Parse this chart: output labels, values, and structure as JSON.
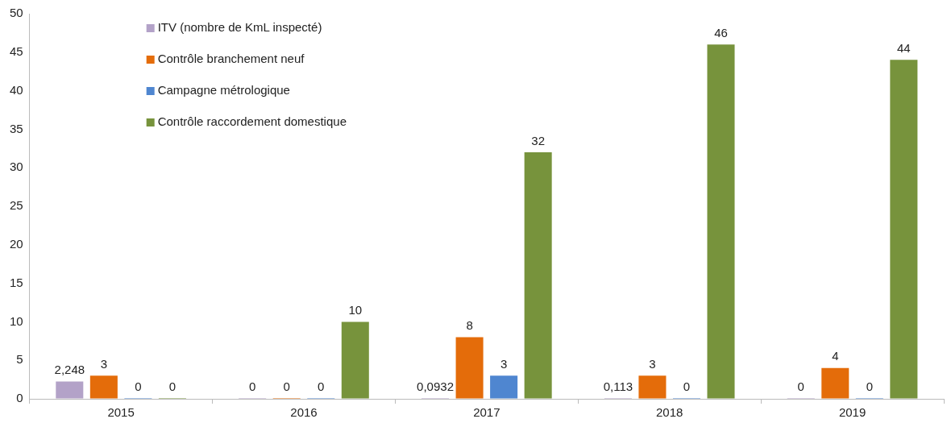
{
  "chart_data": {
    "type": "bar",
    "categories": [
      "2015",
      "2016",
      "2017",
      "2018",
      "2019"
    ],
    "series": [
      {
        "name": "ITV (nombre de KmL inspecté)",
        "color": "#b3a2c8",
        "values": [
          2.248,
          0,
          0.0932,
          0.113,
          0
        ],
        "value_labels": [
          "2,248",
          "0",
          "0,0932",
          "0,113",
          "0"
        ]
      },
      {
        "name": "Contrôle branchement neuf",
        "color": "#e46c0a",
        "values": [
          3,
          0,
          8,
          3,
          4
        ],
        "value_labels": [
          "3",
          "0",
          "8",
          "3",
          "4"
        ]
      },
      {
        "name": "Campagne métrologique",
        "color": "#4f86d0",
        "values": [
          0,
          0,
          3,
          0,
          0
        ],
        "value_labels": [
          "0",
          "0",
          "3",
          "0",
          "0"
        ]
      },
      {
        "name": "Contrôle raccordement domestique",
        "color": "#77933c",
        "values": [
          0,
          10,
          32,
          46,
          44
        ],
        "value_labels": [
          "0",
          "10",
          "32",
          "46",
          "44"
        ]
      }
    ],
    "ylim": [
      0,
      50
    ],
    "yticks": [
      0,
      5,
      10,
      15,
      20,
      25,
      30,
      35,
      40,
      45,
      50
    ],
    "grid": false,
    "legend": "top left"
  }
}
